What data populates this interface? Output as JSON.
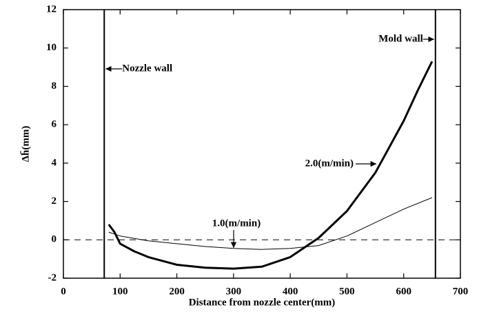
{
  "chart_data": {
    "type": "line",
    "xlabel": "Distance from nozzle center(mm)",
    "ylabel": "Δh̄(mm)",
    "series": [
      {
        "name": "1.0(m/min)",
        "color": "#000000",
        "width": 1,
        "x": [
          80,
          100,
          150,
          200,
          250,
          300,
          350,
          400,
          450,
          500,
          550,
          600,
          650
        ],
        "values": [
          0.4,
          0.2,
          -0.05,
          -0.2,
          -0.35,
          -0.45,
          -0.5,
          -0.45,
          -0.3,
          0.2,
          0.9,
          1.6,
          2.2
        ]
      },
      {
        "name": "2.0(m/min)",
        "color": "#000000",
        "width": 3,
        "x": [
          80,
          90,
          100,
          125,
          150,
          200,
          250,
          300,
          350,
          400,
          450,
          500,
          550,
          600,
          625,
          650
        ],
        "values": [
          0.8,
          0.4,
          -0.2,
          -0.6,
          -0.9,
          -1.3,
          -1.45,
          -1.5,
          -1.4,
          -0.9,
          0.1,
          1.5,
          3.5,
          6.2,
          7.8,
          9.3
        ]
      }
    ],
    "walls": [
      {
        "label": "Nozzle wall",
        "x": 72
      },
      {
        "label": "Mold wall",
        "x": 656
      }
    ],
    "reference_y": 0,
    "xlim": [
      0,
      700
    ],
    "xticks": [
      0,
      100,
      200,
      300,
      400,
      500,
      600,
      700
    ],
    "ylim": [
      -2,
      12
    ],
    "yticks": [
      -2,
      0,
      2,
      4,
      6,
      8,
      10,
      12
    ]
  }
}
